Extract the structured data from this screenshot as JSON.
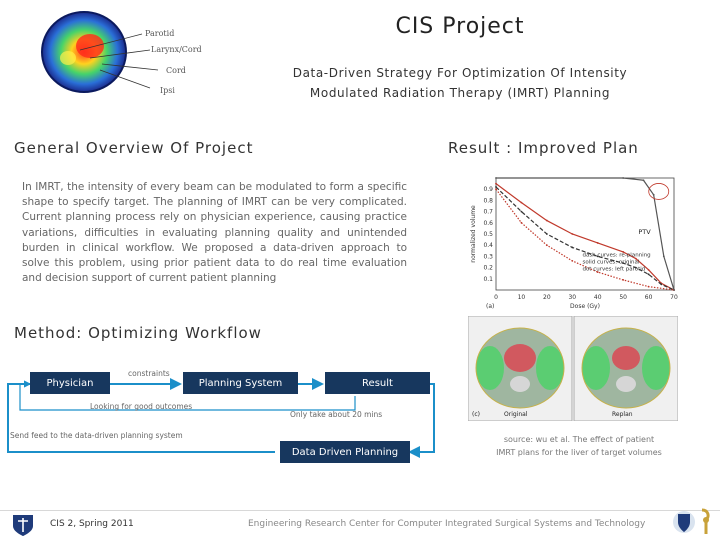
{
  "header": {
    "title": "CIS Project",
    "subtitle_line1": "Data-Driven Strategy For Optimization Of Intensity",
    "subtitle_line2": "Modulated Radiation Therapy (IMRT) Planning",
    "brain_labels": [
      "Parotid",
      "Larynx/Cord",
      "Cord",
      "Ipsi"
    ]
  },
  "overview": {
    "heading": "General Overview Of Project",
    "text": "In IMRT, the intensity of every beam can be modulated to form a specific shape to specify target. The planning of IMRT can be very complicated. Current planning process rely on physician experience, causing practice variations, difficulties in evaluating planning quality and unintended burden in clinical workflow. We proposed a data-driven approach to solve this problem, using prior patient data to do real time evaluation and decision support of current patient planning"
  },
  "method": {
    "heading": "Method: Optimizing Workflow",
    "boxes": {
      "physician": "Physician",
      "planning_system": "Planning System",
      "result": "Result",
      "data_driven": "Data Driven Planning"
    },
    "notes": {
      "top": "constraints",
      "middle_left": "Looking for good outcomes",
      "middle_right": "Only take about 20 mins",
      "bottom_left": "Send feed to the data-driven planning system"
    }
  },
  "result": {
    "heading": "Result : Improved Plan",
    "chart_data": {
      "type": "line",
      "title": "",
      "xlabel": "Dose (Gy)",
      "ylabel": "normalized volume",
      "xlim": [
        0,
        70
      ],
      "ylim": [
        0,
        1
      ],
      "x_ticks": [
        0,
        10,
        20,
        30,
        40,
        50,
        60,
        70
      ],
      "y_ticks": [
        0.1,
        0.2,
        0.3,
        0.4,
        0.5,
        0.6,
        0.7,
        0.8,
        0.9
      ],
      "panel_label": "(a)",
      "annotation": "PTV",
      "legend": [
        "dash curves: re-planning",
        "solid curves: original",
        "dot curves: left parotid"
      ],
      "series": [
        {
          "name": "original",
          "style": "solid",
          "color": "#c0392b",
          "x": [
            0,
            10,
            20,
            30,
            40,
            50,
            55,
            60,
            65,
            70
          ],
          "y": [
            0.95,
            0.78,
            0.62,
            0.5,
            0.42,
            0.34,
            0.28,
            0.18,
            0.06,
            0.0
          ]
        },
        {
          "name": "re-planning",
          "style": "dash",
          "color": "#333333",
          "x": [
            0,
            10,
            20,
            30,
            40,
            50,
            55,
            60,
            65,
            70
          ],
          "y": [
            0.92,
            0.7,
            0.5,
            0.38,
            0.3,
            0.24,
            0.2,
            0.14,
            0.05,
            0.0
          ]
        },
        {
          "name": "left parotid",
          "style": "dot",
          "color": "#c0392b",
          "x": [
            0,
            10,
            20,
            30,
            40,
            50,
            60,
            70
          ],
          "y": [
            0.9,
            0.6,
            0.4,
            0.26,
            0.16,
            0.09,
            0.03,
            0.0
          ]
        },
        {
          "name": "PTV",
          "style": "solid",
          "color": "#555555",
          "x": [
            0,
            50,
            58,
            62,
            66,
            70
          ],
          "y": [
            1.0,
            1.0,
            0.98,
            0.85,
            0.3,
            0.0
          ]
        }
      ]
    },
    "ct_panel_labels": [
      "(c)",
      "Original",
      "Replan"
    ],
    "caption_line1": "source: wu et al. The effect of patient",
    "caption_line2": "IMRT plans for the liver of target volumes"
  },
  "footer": {
    "left": "CIS 2, Spring 2011",
    "right": "Engineering Research Center for Computer Integrated Surgical Systems and Technology"
  },
  "colors": {
    "box_fill": "#17375e",
    "arrow": "#1b8fc9"
  }
}
